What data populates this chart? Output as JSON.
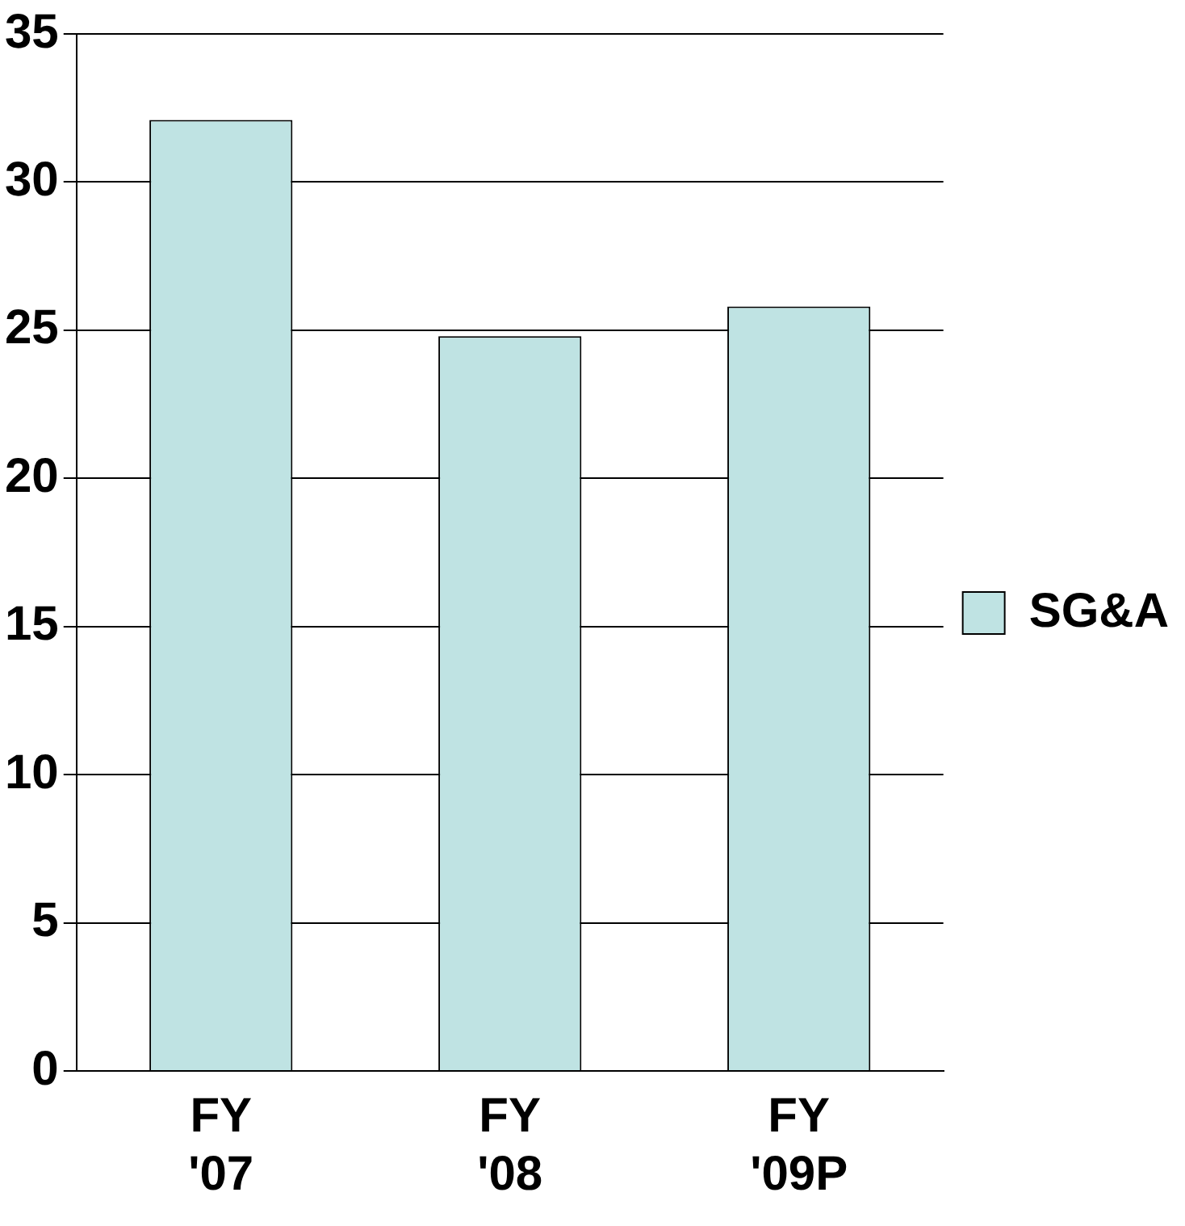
{
  "chart_data": {
    "type": "bar",
    "categories": [
      "FY '07",
      "FY '08",
      "FY '09P"
    ],
    "series": [
      {
        "name": "SG&A",
        "color": "#bfe3e3",
        "values": [
          32.1,
          24.8,
          25.8
        ]
      }
    ],
    "ylim": [
      0,
      35
    ],
    "yticks": [
      0,
      5,
      10,
      15,
      20,
      25,
      30,
      35
    ],
    "grid": "y",
    "legend": "right"
  }
}
